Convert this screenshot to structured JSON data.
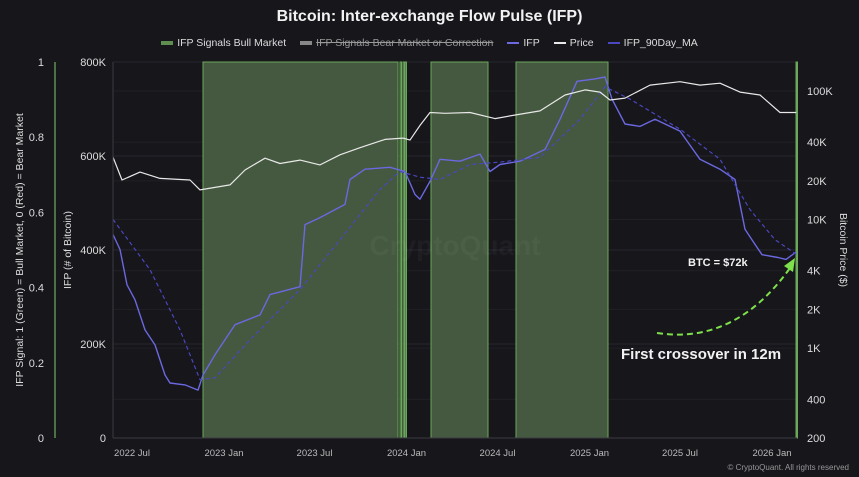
{
  "chart_data": {
    "type": "line",
    "title": "Bitcoin: Inter-exchange Flow Pulse (IFP)",
    "legend": [
      {
        "name": "IFP Signals Bull Market",
        "color": "#5f8f50",
        "style": "area",
        "hidden": false
      },
      {
        "name": "IFP Signals Bear Market or Correction",
        "color": "#888888",
        "style": "area",
        "hidden": true
      },
      {
        "name": "IFP",
        "color": "#6b68e0",
        "style": "solid",
        "hidden": false
      },
      {
        "name": "Price",
        "color": "#e8e8e8",
        "style": "solid",
        "hidden": false
      },
      {
        "name": "IFP_90Day_MA",
        "color": "#4a47c0",
        "style": "dashed",
        "hidden": false
      }
    ],
    "legend_position": "top",
    "xlim": [
      "2022-05-24",
      "2026-02-20"
    ],
    "x_ticks": [
      "2022 Jul",
      "2023 Jan",
      "2023 Jul",
      "2024 Jan",
      "2024 Jul",
      "2025 Jan",
      "2025 Jul",
      "2026 Jan"
    ],
    "x_tick_dates": [
      "2022-07-01",
      "2023-01-01",
      "2023-07-01",
      "2024-01-01",
      "2024-07-01",
      "2025-01-01",
      "2025-07-01",
      "2026-01-01"
    ],
    "y_signal": {
      "label": "IFP Signal: 1 (Green) = Bull Market, 0 (Red) = Bear Market",
      "ylim": [
        0,
        1
      ],
      "ticks": [
        "0",
        "0.2",
        "0.4",
        "0.6",
        "0.8",
        "1"
      ],
      "tick_values": [
        0,
        0.2,
        0.4,
        0.6,
        0.8,
        1
      ]
    },
    "y_ifp": {
      "label": "IFP (# of Bitcoin)",
      "ylim": [
        0,
        800000
      ],
      "ticks": [
        "0",
        "200K",
        "400K",
        "600K",
        "800K"
      ],
      "tick_values": [
        0,
        200000,
        400000,
        600000,
        800000
      ]
    },
    "y_price": {
      "label": "Bitcoin Price ($)",
      "scale": "log",
      "ylim": [
        200,
        168000
      ],
      "ticks": [
        "200",
        "400",
        "1K",
        "2K",
        "4K",
        "10K",
        "20K",
        "40K",
        "100K"
      ],
      "tick_values": [
        200,
        400,
        1000,
        2000,
        4000,
        10000,
        20000,
        40000,
        100000
      ]
    },
    "grid": true,
    "bull_periods": [
      [
        "2022-11-20",
        "2023-12-15"
      ],
      [
        "2023-12-19",
        "2023-12-21"
      ],
      [
        "2023-12-25",
        "2023-12-27"
      ],
      [
        "2023-12-29",
        "2023-12-31"
      ],
      [
        "2024-02-19",
        "2024-06-12"
      ],
      [
        "2024-08-07",
        "2025-02-07"
      ],
      [
        "2026-02-18",
        "2026-02-20"
      ]
    ],
    "series": [
      {
        "name": "IFP",
        "points": [
          [
            "2022-05-24",
            433000
          ],
          [
            "2022-06-07",
            401000
          ],
          [
            "2022-06-21",
            326000
          ],
          [
            "2022-07-07",
            294000
          ],
          [
            "2022-07-27",
            230000
          ],
          [
            "2022-08-16",
            198000
          ],
          [
            "2022-09-05",
            134000
          ],
          [
            "2022-09-15",
            117000
          ],
          [
            "2022-10-15",
            113000
          ],
          [
            "2022-11-10",
            102000
          ],
          [
            "2022-11-20",
            134000
          ],
          [
            "2022-12-14",
            177000
          ],
          [
            "2023-01-23",
            241000
          ],
          [
            "2023-03-14",
            262000
          ],
          [
            "2023-04-03",
            305000
          ],
          [
            "2023-06-02",
            322000
          ],
          [
            "2023-06-12",
            454000
          ],
          [
            "2023-07-12",
            469000
          ],
          [
            "2023-08-31",
            497000
          ],
          [
            "2023-09-10",
            550000
          ],
          [
            "2023-10-10",
            572000
          ],
          [
            "2023-11-29",
            576000
          ],
          [
            "2023-12-29",
            567000
          ],
          [
            "2024-01-18",
            518000
          ],
          [
            "2024-01-28",
            508000
          ],
          [
            "2024-02-17",
            546000
          ],
          [
            "2024-03-08",
            593000
          ],
          [
            "2024-04-17",
            589000
          ],
          [
            "2024-05-27",
            604000
          ],
          [
            "2024-06-16",
            567000
          ],
          [
            "2024-07-06",
            582000
          ],
          [
            "2024-08-15",
            589000
          ],
          [
            "2024-10-04",
            614000
          ],
          [
            "2024-11-03",
            678000
          ],
          [
            "2024-12-07",
            759000
          ],
          [
            "2025-01-12",
            764000
          ],
          [
            "2025-02-01",
            768000
          ],
          [
            "2025-02-15",
            721000
          ],
          [
            "2025-03-13",
            668000
          ],
          [
            "2025-04-12",
            663000
          ],
          [
            "2025-05-12",
            678000
          ],
          [
            "2025-07-01",
            653000
          ],
          [
            "2025-08-10",
            593000
          ],
          [
            "2025-09-19",
            572000
          ],
          [
            "2025-10-19",
            550000
          ],
          [
            "2025-11-08",
            444000
          ],
          [
            "2025-11-28",
            412000
          ],
          [
            "2025-12-12",
            390000
          ],
          [
            "2026-01-13",
            384000
          ],
          [
            "2026-01-29",
            380000
          ],
          [
            "2026-02-20",
            397000
          ]
        ]
      },
      {
        "name": "IFP_90Day_MA",
        "points": [
          [
            "2022-05-24",
            465000
          ],
          [
            "2022-08-06",
            358000
          ],
          [
            "2022-10-05",
            230000
          ],
          [
            "2022-11-14",
            124000
          ],
          [
            "2022-12-14",
            128000
          ],
          [
            "2023-02-22",
            209000
          ],
          [
            "2023-06-02",
            316000
          ],
          [
            "2023-08-21",
            422000
          ],
          [
            "2023-11-09",
            529000
          ],
          [
            "2023-12-19",
            567000
          ],
          [
            "2024-01-28",
            555000
          ],
          [
            "2024-03-08",
            550000
          ],
          [
            "2024-05-07",
            582000
          ],
          [
            "2024-07-06",
            587000
          ],
          [
            "2024-09-24",
            597000
          ],
          [
            "2024-12-13",
            678000
          ],
          [
            "2025-02-01",
            747000
          ],
          [
            "2025-03-23",
            721000
          ],
          [
            "2025-07-01",
            657000
          ],
          [
            "2025-09-19",
            593000
          ],
          [
            "2025-11-18",
            486000
          ],
          [
            "2026-01-07",
            422000
          ],
          [
            "2026-02-20",
            390000
          ]
        ]
      },
      {
        "name": "Price",
        "points": [
          [
            "2022-05-24",
            30600
          ],
          [
            "2022-06-11",
            20300
          ],
          [
            "2022-07-17",
            23400
          ],
          [
            "2022-08-26",
            20900
          ],
          [
            "2022-10-25",
            20300
          ],
          [
            "2022-11-14",
            17000
          ],
          [
            "2023-01-13",
            18600
          ],
          [
            "2023-02-12",
            24300
          ],
          [
            "2023-03-24",
            30000
          ],
          [
            "2023-04-23",
            27300
          ],
          [
            "2023-06-02",
            29000
          ],
          [
            "2023-07-12",
            26600
          ],
          [
            "2023-08-21",
            31900
          ],
          [
            "2023-09-30",
            36200
          ],
          [
            "2023-11-19",
            42000
          ],
          [
            "2023-12-25",
            43000
          ],
          [
            "2024-01-08",
            41500
          ],
          [
            "2024-01-28",
            54000
          ],
          [
            "2024-02-17",
            68000
          ],
          [
            "2024-03-18",
            67000
          ],
          [
            "2024-05-07",
            68000
          ],
          [
            "2024-06-26",
            61000
          ],
          [
            "2024-07-26",
            64000
          ],
          [
            "2024-09-24",
            70000
          ],
          [
            "2024-11-13",
            93000
          ],
          [
            "2024-12-23",
            102000
          ],
          [
            "2025-01-22",
            98000
          ],
          [
            "2025-02-11",
            85000
          ],
          [
            "2025-03-13",
            88000
          ],
          [
            "2025-05-02",
            111000
          ],
          [
            "2025-07-01",
            118000
          ],
          [
            "2025-08-10",
            111000
          ],
          [
            "2025-09-19",
            115000
          ],
          [
            "2025-10-29",
            98000
          ],
          [
            "2025-12-08",
            93000
          ],
          [
            "2026-01-17",
            68000
          ],
          [
            "2026-02-20",
            68000
          ]
        ]
      }
    ],
    "annotations": {
      "btc_label": "BTC = $72k",
      "crossover_label": "First crossover in 12m",
      "arrow_color": "#7ee04a"
    }
  },
  "watermark": "CryptoQuant",
  "credit": "© CryptoQuant. All rights reserved"
}
